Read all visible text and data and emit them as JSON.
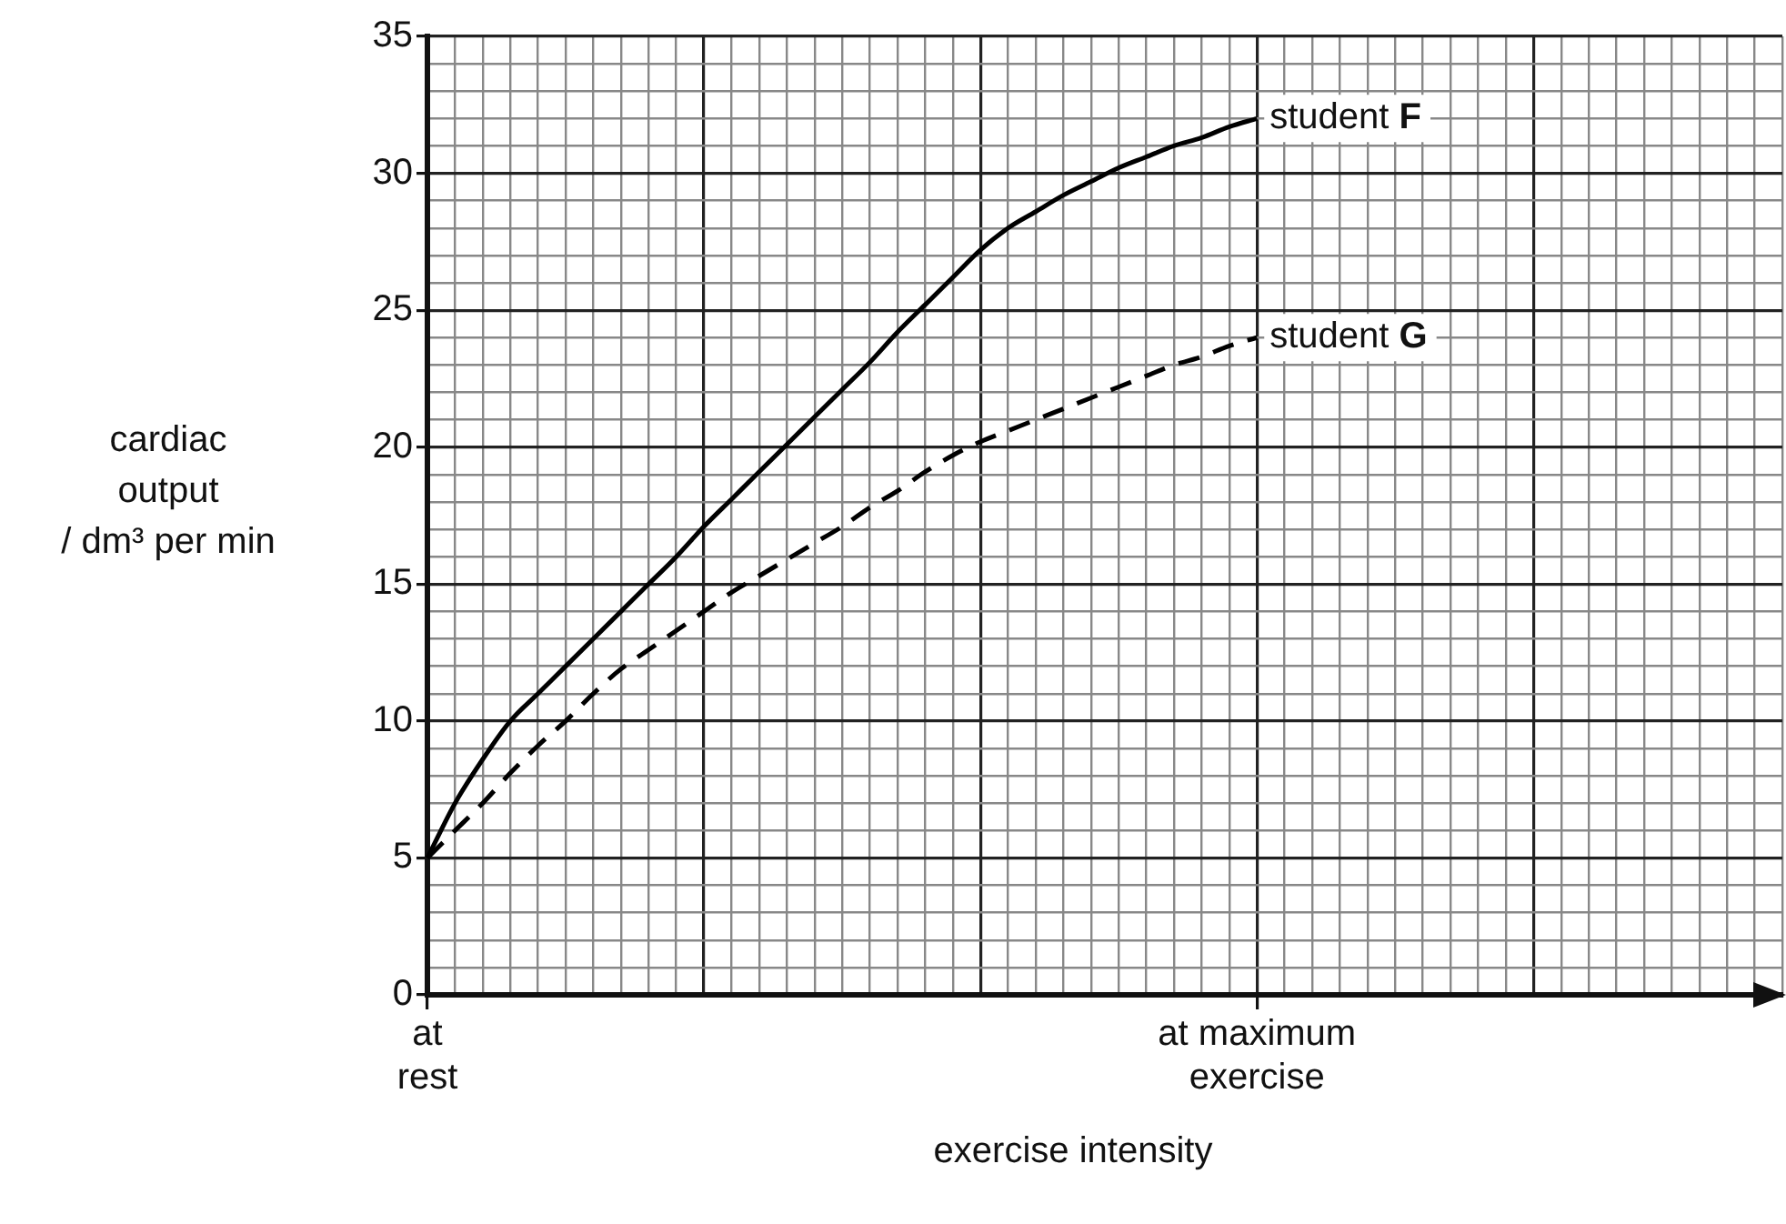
{
  "chart_data": {
    "type": "line",
    "xlabel": "exercise intensity",
    "ylabel": "cardiac output / dm³ per min",
    "categories": [
      "at rest",
      null,
      null,
      null,
      null,
      null,
      null,
      null,
      null,
      null,
      null,
      null,
      null,
      null,
      null,
      null,
      null,
      null,
      null,
      null,
      null,
      null,
      null,
      null,
      null,
      null,
      null,
      null,
      null,
      null,
      "at maximum exercise",
      null,
      null,
      null,
      null,
      null,
      null,
      null,
      null,
      null,
      null,
      null,
      null,
      null,
      null,
      null,
      null,
      null,
      null,
      null
    ],
    "ylim": [
      0,
      35
    ],
    "yticks": [
      0,
      {
        "value": 1,
        "label": null
      },
      {
        "value": 2,
        "label": null
      },
      {
        "value": 3,
        "label": null
      },
      {
        "value": 4,
        "label": null
      },
      5,
      {
        "value": 6,
        "label": null
      },
      {
        "value": 7,
        "label": null
      },
      {
        "value": 8,
        "label": null
      },
      {
        "value": 9,
        "label": null
      },
      10,
      {
        "value": 11,
        "label": null
      },
      {
        "value": 12,
        "label": null
      },
      {
        "value": 13,
        "label": null
      },
      {
        "value": 14,
        "label": null
      },
      15,
      {
        "value": 16,
        "label": null
      },
      {
        "value": 17,
        "label": null
      },
      {
        "value": 18,
        "label": null
      },
      {
        "value": 19,
        "label": null
      },
      20,
      {
        "value": 21,
        "label": null
      },
      {
        "value": 22,
        "label": null
      },
      {
        "value": 23,
        "label": null
      },
      {
        "value": 24,
        "label": null
      },
      25,
      {
        "value": 26,
        "label": null
      },
      {
        "value": 27,
        "label": null
      },
      {
        "value": 28,
        "label": null
      },
      {
        "value": 29,
        "label": null
      },
      30,
      {
        "value": 31,
        "label": null
      },
      {
        "value": 32,
        "label": null
      },
      {
        "value": 33,
        "label": null
      },
      {
        "value": 34,
        "label": null
      },
      35
    ],
    "grid": true,
    "legend": false,
    "marker": "none",
    "series": [
      {
        "name": "student F",
        "color": "#000000",
        "line_style": "solid",
        "values": [
          5,
          7,
          8.6,
          10,
          11,
          12,
          13,
          14,
          15,
          16,
          17.1,
          18.1,
          19.1,
          20.1,
          21.1,
          22.1,
          23.1,
          24.2,
          25.2,
          26.2,
          27.2,
          28,
          28.6,
          29.2,
          29.7,
          30.2,
          30.6,
          31,
          31.3,
          31.7,
          32,
          null,
          null,
          null,
          null,
          null,
          null,
          null,
          null,
          null,
          null,
          null,
          null,
          null,
          null,
          null,
          null,
          null,
          null,
          null
        ]
      },
      {
        "name": "student G",
        "color": "#000000",
        "line_style": "dashed",
        "values": [
          5,
          6,
          7,
          8.1,
          9.1,
          10,
          11,
          11.9,
          12.6,
          13.3,
          14,
          14.7,
          15.3,
          15.9,
          16.5,
          17.1,
          17.8,
          18.4,
          19.1,
          19.7,
          20.2,
          20.6,
          21,
          21.4,
          21.8,
          22.2,
          22.6,
          23,
          23.3,
          23.7,
          24,
          null,
          null,
          null,
          null,
          null,
          null,
          null,
          null,
          null,
          null,
          null,
          null,
          null,
          null,
          null,
          null,
          null,
          null,
          null
        ]
      }
    ]
  }
}
